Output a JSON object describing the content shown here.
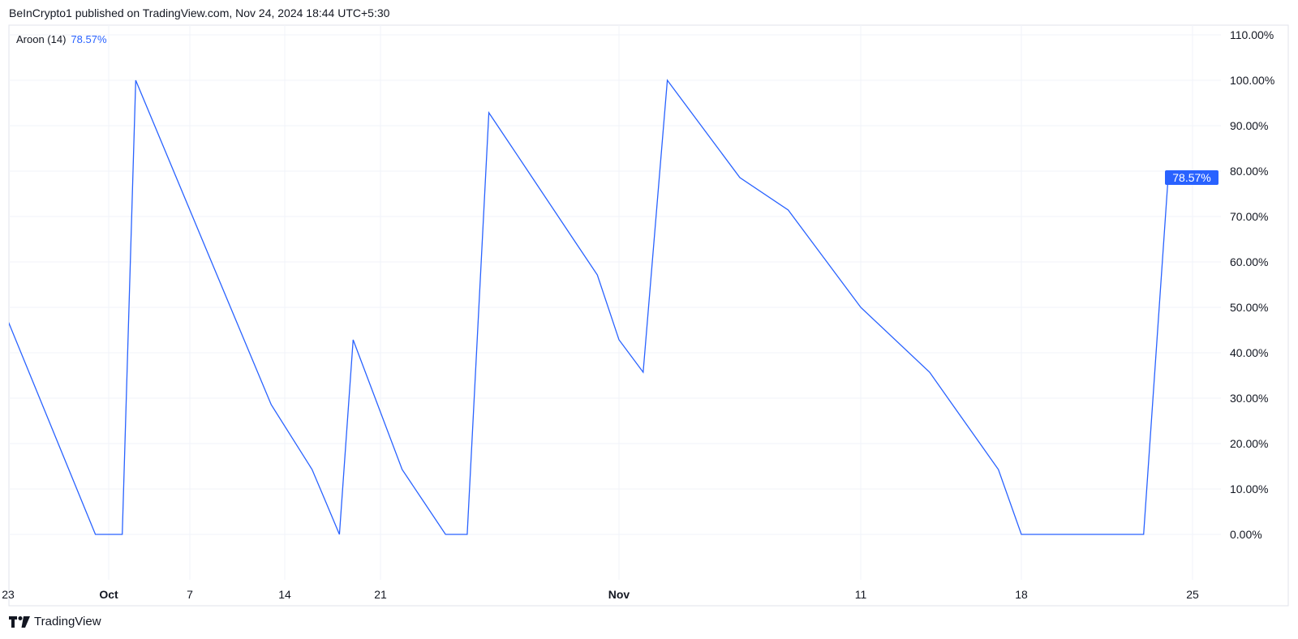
{
  "header": {
    "published": "BeInCrypto1 published on TradingView.com, Nov 24, 2024 18:44 UTC+5:30"
  },
  "legend": {
    "indicator": "Aroon (14)",
    "value": "78.57%"
  },
  "brand": {
    "name": "TradingView",
    "icon": "tradingview-logo-icon"
  },
  "colors": {
    "line": "#2962ff",
    "grid": "#f0f3fa",
    "text": "#131722",
    "tag_bg": "#2962ff"
  },
  "chart_data": {
    "type": "line",
    "title": "",
    "xlabel": "",
    "ylabel": "",
    "grid": true,
    "ylim": [
      -10,
      115
    ],
    "y_ticks": [
      "0.00%",
      "10.00%",
      "20.00%",
      "30.00%",
      "40.00%",
      "50.00%",
      "60.00%",
      "70.00%",
      "80.00%",
      "90.00%",
      "100.00%",
      "110.00%"
    ],
    "y_tick_values": [
      0,
      10,
      20,
      30,
      40,
      50,
      60,
      70,
      80,
      90,
      100,
      110
    ],
    "x_ticks": [
      {
        "date": "2024-09-23",
        "label": "23",
        "bold": false
      },
      {
        "date": "2024-10-01",
        "label": "Oct",
        "bold": true
      },
      {
        "date": "2024-10-07",
        "label": "7",
        "bold": false
      },
      {
        "date": "2024-10-14",
        "label": "14",
        "bold": false
      },
      {
        "date": "2024-10-21",
        "label": "21",
        "bold": false
      },
      {
        "date": "2024-11-01",
        "label": "Nov",
        "bold": true
      },
      {
        "date": "2024-11-11",
        "label": "11",
        "bold": false
      },
      {
        "date": "2024-11-18",
        "label": "18",
        "bold": false
      },
      {
        "date": "2024-11-25",
        "label": "25",
        "bold": false
      }
    ],
    "last_value_label": "78.57%",
    "series": [
      {
        "color": "#2962ff",
        "points": [
          [
            "2024-09-23",
            50
          ],
          [
            "2024-09-30",
            0
          ],
          [
            "2024-10-02",
            0
          ],
          [
            "2024-10-03",
            100
          ],
          [
            "2024-10-08",
            64.29
          ],
          [
            "2024-10-13",
            28.57
          ],
          [
            "2024-10-16",
            14.29
          ],
          [
            "2024-10-17",
            7.14
          ],
          [
            "2024-10-18",
            0
          ],
          [
            "2024-10-19",
            42.86
          ],
          [
            "2024-10-22",
            14.29
          ],
          [
            "2024-10-23",
            7.14
          ],
          [
            "2024-10-24",
            0
          ],
          [
            "2024-10-25",
            0
          ],
          [
            "2024-10-26",
            92.86
          ],
          [
            "2024-10-27",
            85.71
          ],
          [
            "2024-10-28",
            78.57
          ],
          [
            "2024-10-30",
            64.29
          ],
          [
            "2024-10-31",
            57.14
          ],
          [
            "2024-11-01",
            42.86
          ],
          [
            "2024-11-02",
            35.71
          ],
          [
            "2024-11-03",
            100
          ],
          [
            "2024-11-04",
            92.86
          ],
          [
            "2024-11-05",
            85.71
          ],
          [
            "2024-11-06",
            78.57
          ],
          [
            "2024-11-08",
            71.43
          ],
          [
            "2024-11-09",
            64.29
          ],
          [
            "2024-11-10",
            57.14
          ],
          [
            "2024-11-11",
            50
          ],
          [
            "2024-11-14",
            35.71
          ],
          [
            "2024-11-15",
            28.57
          ],
          [
            "2024-11-16",
            21.43
          ],
          [
            "2024-11-17",
            14.29
          ],
          [
            "2024-11-18",
            0
          ],
          [
            "2024-11-23",
            0
          ],
          [
            "2024-11-24",
            78.57
          ]
        ]
      }
    ]
  }
}
